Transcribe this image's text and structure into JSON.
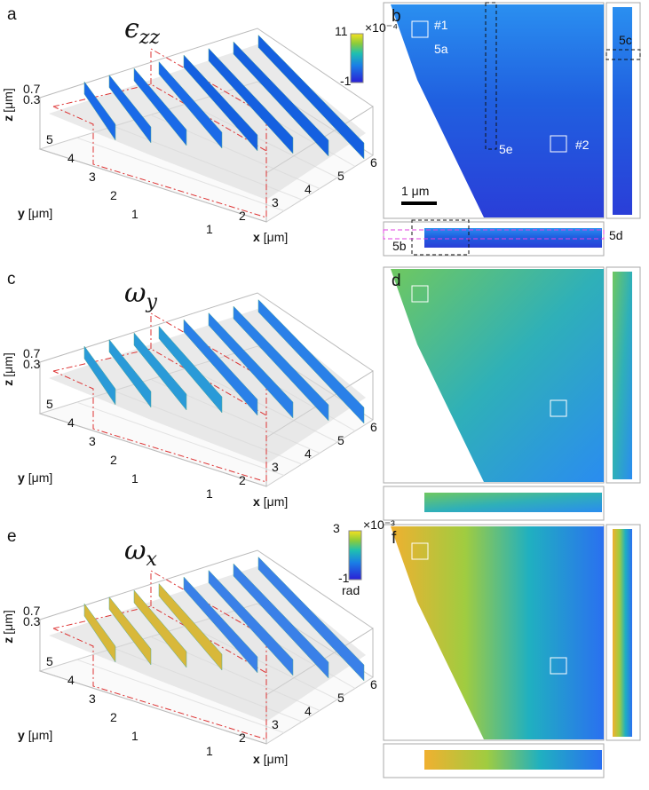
{
  "panels": [
    {
      "label": "a",
      "title": {
        "symbol": "ϵ",
        "subscript": "zz"
      },
      "map_label": "b"
    },
    {
      "label": "c",
      "title": {
        "symbol": "ω",
        "subscript": "y"
      },
      "map_label": "d"
    },
    {
      "label": "e",
      "title": {
        "symbol": "ω",
        "subscript": "x"
      },
      "map_label": "f"
    }
  ],
  "axes": {
    "z_label": "z",
    "y_label": "y",
    "x_label": "x",
    "unit": "[μm]",
    "z_ticks": [
      0.7,
      0.3
    ],
    "y_ticks": [
      5,
      4,
      3,
      2,
      1
    ],
    "x_ticks": [
      1,
      2,
      3,
      4,
      5,
      6
    ]
  },
  "colorbars": [
    {
      "max": 11,
      "min": -1,
      "multiplier": "×10⁻⁴"
    },
    {
      "max": 3,
      "min": -1,
      "multiplier": "×10⁻³",
      "unit": "rad"
    }
  ],
  "annotations": {
    "roi_1": "#1",
    "fig_5a": "5a",
    "roi_2": "#2",
    "fig_5e": "5e",
    "fig_5c": "5c",
    "fig_5b": "5b",
    "fig_5d": "5d",
    "scale_bar": "1 μm"
  }
}
